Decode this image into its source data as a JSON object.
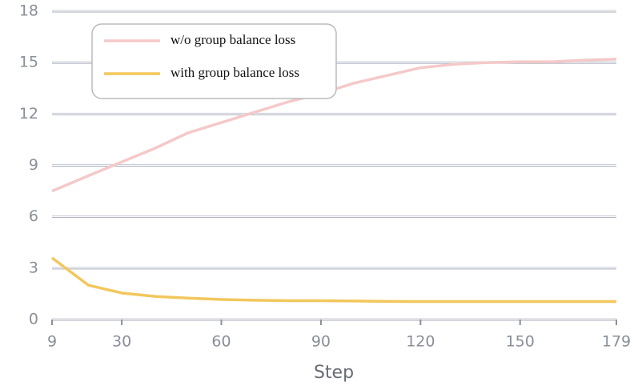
{
  "chart_data": {
    "type": "line",
    "xlabel": "Step",
    "x": [
      9,
      20,
      30,
      40,
      50,
      60,
      70,
      80,
      90,
      100,
      110,
      120,
      130,
      140,
      150,
      160,
      170,
      179
    ],
    "series": [
      {
        "name": "w/o group balance loss",
        "color": "#f5c9c9",
        "values": [
          7.5,
          8.4,
          9.2,
          10.0,
          10.9,
          11.5,
          12.1,
          12.7,
          13.2,
          13.8,
          14.25,
          14.7,
          14.9,
          15.0,
          15.05,
          15.05,
          15.15,
          15.2
        ]
      },
      {
        "name": "with group balance loss",
        "color": "#f2c75c",
        "values": [
          3.6,
          2.0,
          1.55,
          1.35,
          1.25,
          1.17,
          1.13,
          1.1,
          1.1,
          1.08,
          1.06,
          1.05,
          1.05,
          1.05,
          1.05,
          1.05,
          1.05,
          1.05
        ]
      }
    ],
    "xlim": [
      9,
      179
    ],
    "xticks": [
      9,
      30,
      60,
      90,
      120,
      150,
      179
    ],
    "ylim": [
      0,
      18
    ],
    "yticks": [
      0,
      3,
      6,
      9,
      12,
      15,
      18
    ],
    "grid": true
  }
}
